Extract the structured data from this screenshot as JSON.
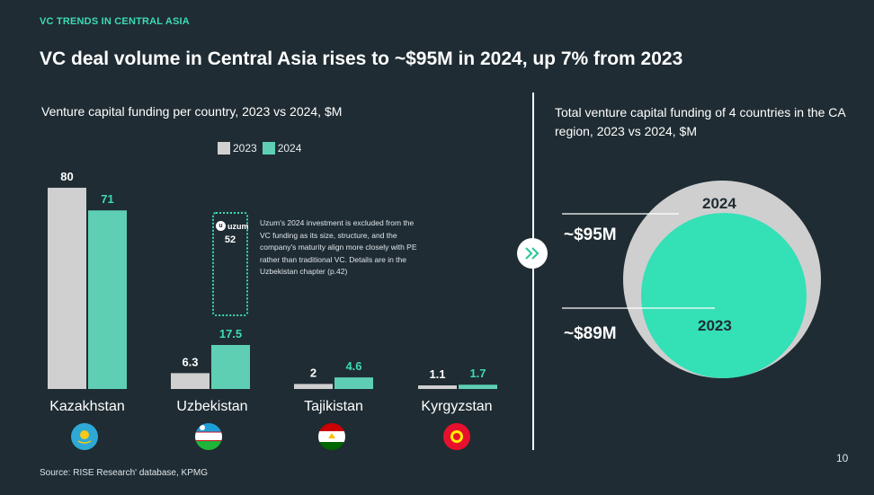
{
  "header": {
    "kicker": "VC TRENDS IN CENTRAL ASIA",
    "title": "VC deal volume in Central Asia rises to ~$95M in 2024, up 7% from 2023"
  },
  "colors": {
    "background": "#1f2c33",
    "series_2023": "#d0d0d0",
    "series_2024": "#5ecfb3",
    "accent": "#3ddbb4",
    "circle_2024": "#cfcfcf",
    "circle_2023": "#34e0b6"
  },
  "chart_data": [
    {
      "type": "bar",
      "title": "Venture capital funding per country, 2023 vs 2024, $M",
      "categories": [
        "Kazakhstan",
        "Uzbekistan",
        "Tajikistan",
        "Kyrgyzstan"
      ],
      "series": [
        {
          "name": "2023",
          "values": [
            80,
            6.3,
            2,
            1.1
          ],
          "labels": [
            "80",
            "6.3",
            "2",
            "1.1"
          ]
        },
        {
          "name": "2024",
          "values": [
            71,
            17.5,
            4.6,
            1.7
          ],
          "labels": [
            "71",
            "17.5",
            "4.6",
            "1.7"
          ]
        }
      ],
      "ylim": [
        0,
        80
      ],
      "legend": "top-center",
      "grid": false
    },
    {
      "type": "bubble",
      "title": "Total venture capital funding of 4 countries in the CA region, 2023 vs 2024, $M",
      "categories": [
        "2024",
        "2023"
      ],
      "values": [
        95,
        89
      ],
      "value_labels": [
        "~$95M",
        "~$89M"
      ]
    }
  ],
  "annotation": {
    "brand": "uzum",
    "value": "52",
    "note": "Uzum's 2024 investment is excluded from the VC funding as its size, structure, and the company's maturity align more closely with PE rather than traditional VC. Details are in the Uzbekistan chapter (p.42)"
  },
  "flags": [
    "kazakhstan-flag-icon",
    "uzbekistan-flag-icon",
    "tajikistan-flag-icon",
    "kyrgyzstan-flag-icon"
  ],
  "footer": {
    "source": "Source: RISE Research' database, KPMG",
    "page": "10"
  }
}
